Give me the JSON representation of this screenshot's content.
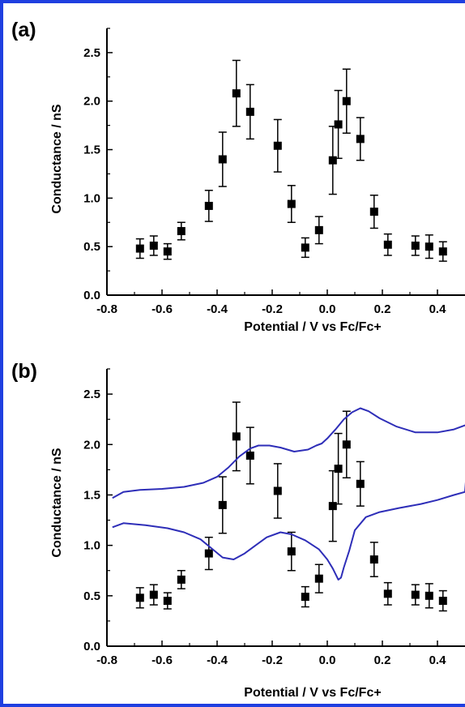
{
  "colors": {
    "frame": "#1f3fe0",
    "curve": "#2e2eb8",
    "marker": "#000000",
    "background": "#ffffff"
  },
  "chart_data": [
    {
      "type": "scatter",
      "panel_label": "(a)",
      "xlabel": "Potential / V vs Fc/Fc+",
      "ylabel": "Conductance / nS",
      "xlim": [
        -0.8,
        0.5
      ],
      "ylim": [
        0.0,
        2.75
      ],
      "xticks": [
        "-0.8",
        "-0.6",
        "-0.4",
        "-0.2",
        "0.0",
        "0.2",
        "0.4"
      ],
      "yticks": [
        "0.0",
        "0.5",
        "1.0",
        "1.5",
        "2.0",
        "2.5"
      ],
      "grid": false,
      "series": [
        {
          "marker": "square",
          "x": [
            -0.68,
            -0.63,
            -0.58,
            -0.53,
            -0.43,
            -0.38,
            -0.33,
            -0.28,
            -0.18,
            -0.13,
            -0.08,
            -0.03,
            0.02,
            0.04,
            0.07,
            0.12,
            0.17,
            0.22,
            0.32,
            0.37,
            0.42
          ],
          "y": [
            0.48,
            0.51,
            0.45,
            0.66,
            0.92,
            1.4,
            2.08,
            1.89,
            1.54,
            0.94,
            0.49,
            0.67,
            1.39,
            1.76,
            2.0,
            1.61,
            0.86,
            0.52,
            0.51,
            0.5,
            0.45
          ],
          "yerr": [
            0.1,
            0.1,
            0.08,
            0.09,
            0.16,
            0.28,
            0.34,
            0.28,
            0.27,
            0.19,
            0.1,
            0.14,
            0.35,
            0.35,
            0.33,
            0.22,
            0.17,
            0.11,
            0.1,
            0.12,
            0.1
          ]
        }
      ]
    },
    {
      "type": "scatter",
      "panel_label": "(b)",
      "xlabel": "Potential / V vs Fc/Fc+",
      "ylabel": "Conductance / nS",
      "xlim": [
        -0.8,
        0.5
      ],
      "ylim": [
        0.0,
        2.75
      ],
      "xticks": [
        "-0.8",
        "-0.6",
        "-0.4",
        "-0.2",
        "0.0",
        "0.2",
        "0.4"
      ],
      "yticks": [
        "0.0",
        "0.5",
        "1.0",
        "1.5",
        "2.0",
        "2.5"
      ],
      "grid": false,
      "series": [
        {
          "marker": "square",
          "x": [
            -0.68,
            -0.63,
            -0.58,
            -0.53,
            -0.43,
            -0.38,
            -0.33,
            -0.28,
            -0.18,
            -0.13,
            -0.08,
            -0.03,
            0.02,
            0.04,
            0.07,
            0.12,
            0.17,
            0.22,
            0.32,
            0.37,
            0.42
          ],
          "y": [
            0.48,
            0.51,
            0.45,
            0.66,
            0.92,
            1.4,
            2.08,
            1.89,
            1.54,
            0.94,
            0.49,
            0.67,
            1.39,
            1.76,
            2.0,
            1.61,
            0.86,
            0.52,
            0.51,
            0.5,
            0.45
          ],
          "yerr": [
            0.1,
            0.1,
            0.08,
            0.09,
            0.16,
            0.28,
            0.34,
            0.28,
            0.27,
            0.19,
            0.1,
            0.14,
            0.35,
            0.35,
            0.33,
            0.22,
            0.17,
            0.11,
            0.1,
            0.12,
            0.1
          ]
        },
        {
          "type": "line",
          "points": [
            [
              -0.78,
              1.47
            ],
            [
              -0.74,
              1.53
            ],
            [
              -0.68,
              1.55
            ],
            [
              -0.6,
              1.56
            ],
            [
              -0.52,
              1.58
            ],
            [
              -0.45,
              1.62
            ],
            [
              -0.4,
              1.68
            ],
            [
              -0.36,
              1.77
            ],
            [
              -0.32,
              1.88
            ],
            [
              -0.28,
              1.96
            ],
            [
              -0.25,
              1.99
            ],
            [
              -0.21,
              1.99
            ],
            [
              -0.17,
              1.97
            ],
            [
              -0.12,
              1.93
            ],
            [
              -0.07,
              1.95
            ],
            [
              -0.04,
              1.99
            ],
            [
              -0.02,
              2.01
            ],
            [
              0.0,
              2.06
            ],
            [
              0.03,
              2.15
            ],
            [
              0.06,
              2.25
            ],
            [
              0.09,
              2.32
            ],
            [
              0.12,
              2.36
            ],
            [
              0.15,
              2.33
            ],
            [
              0.19,
              2.26
            ],
            [
              0.25,
              2.18
            ],
            [
              0.32,
              2.12
            ],
            [
              0.4,
              2.12
            ],
            [
              0.46,
              2.15
            ],
            [
              0.5,
              2.19
            ],
            [
              0.52,
              2.2
            ],
            [
              0.5,
              1.53
            ],
            [
              0.46,
              1.5
            ],
            [
              0.4,
              1.45
            ],
            [
              0.34,
              1.41
            ],
            [
              0.26,
              1.37
            ],
            [
              0.19,
              1.33
            ],
            [
              0.14,
              1.28
            ],
            [
              0.1,
              1.15
            ],
            [
              0.08,
              0.95
            ],
            [
              0.06,
              0.78
            ],
            [
              0.05,
              0.68
            ],
            [
              0.04,
              0.66
            ],
            [
              0.02,
              0.77
            ],
            [
              0.0,
              0.86
            ],
            [
              -0.03,
              0.96
            ],
            [
              -0.08,
              1.05
            ],
            [
              -0.13,
              1.11
            ],
            [
              -0.17,
              1.13
            ],
            [
              -0.22,
              1.08
            ],
            [
              -0.26,
              1.0
            ],
            [
              -0.3,
              0.92
            ],
            [
              -0.34,
              0.86
            ],
            [
              -0.38,
              0.88
            ],
            [
              -0.42,
              0.97
            ],
            [
              -0.46,
              1.06
            ],
            [
              -0.52,
              1.13
            ],
            [
              -0.58,
              1.17
            ],
            [
              -0.66,
              1.2
            ],
            [
              -0.74,
              1.22
            ],
            [
              -0.78,
              1.18
            ]
          ]
        }
      ]
    }
  ]
}
